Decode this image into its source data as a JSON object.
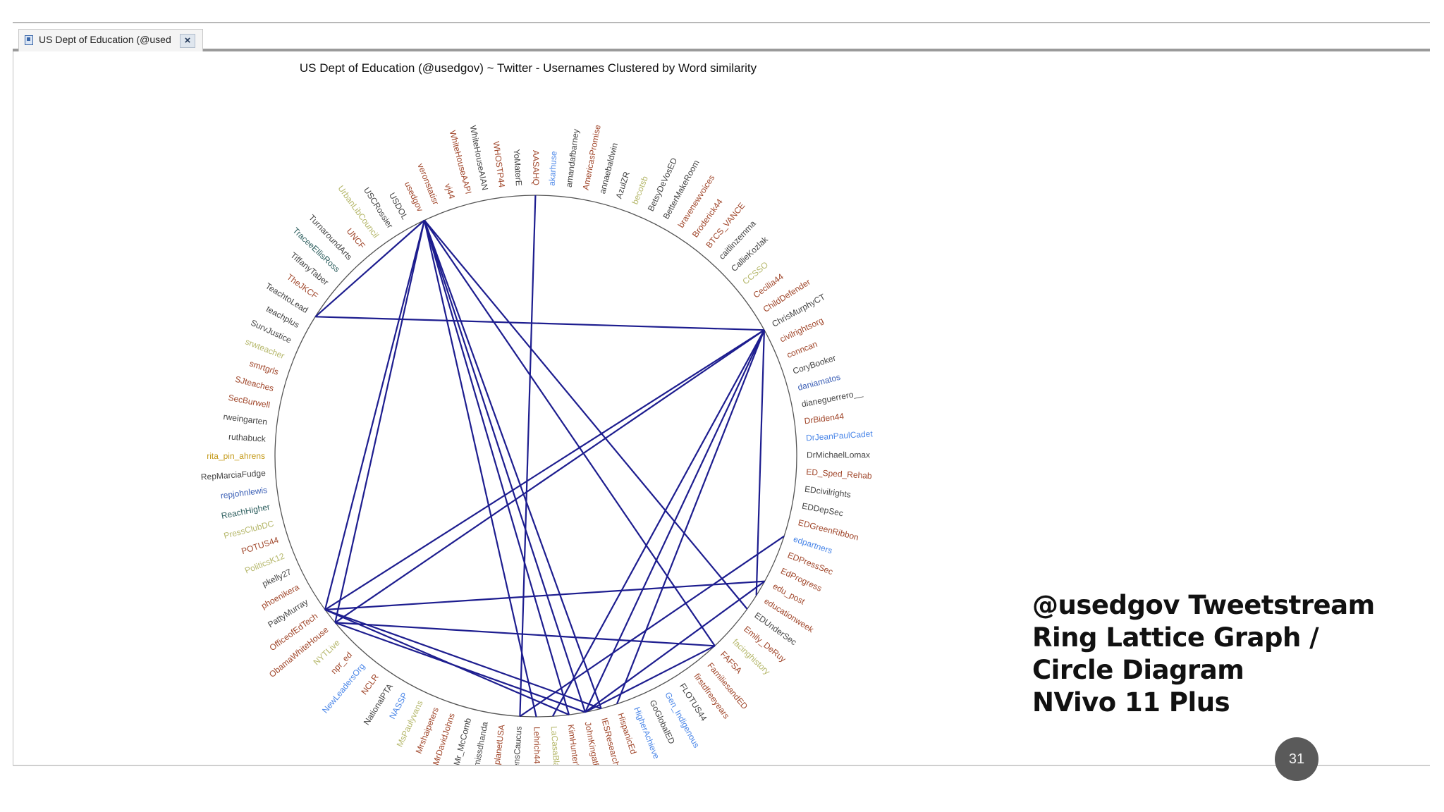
{
  "tab": {
    "title": "US Dept of Education (@used",
    "close_glyph": "×",
    "icon": "document-icon",
    "close_icon": "close-icon"
  },
  "diagram": {
    "title": "US Dept of Education (@usedgov) ~ Twitter - Usernames Clustered by Word similarity",
    "nodes": [
      {
        "label": "akarhuse",
        "color": "#4a86e8"
      },
      {
        "label": "amandafbarney",
        "color": "#444444"
      },
      {
        "label": "AmericasPromise",
        "color": "#a0462a"
      },
      {
        "label": "annaebaldwin",
        "color": "#444444"
      },
      {
        "label": "AzulZR",
        "color": "#444444"
      },
      {
        "label": "becotsb",
        "color": "#b5b76a"
      },
      {
        "label": "BetsyDeVosED",
        "color": "#444444"
      },
      {
        "label": "BetterMakeRoom",
        "color": "#444444"
      },
      {
        "label": "bravenewvoices",
        "color": "#a0462a"
      },
      {
        "label": "Broderick44",
        "color": "#a0462a"
      },
      {
        "label": "BTCS_VANCE",
        "color": "#a0462a"
      },
      {
        "label": "caitlinzemma",
        "color": "#444444"
      },
      {
        "label": "CallieKozlak",
        "color": "#444444"
      },
      {
        "label": "CCSSO",
        "color": "#b5b76a"
      },
      {
        "label": "Cecilia44",
        "color": "#a0462a"
      },
      {
        "label": "ChildDefender",
        "color": "#a0462a"
      },
      {
        "label": "ChrisMurphyCT",
        "color": "#444444"
      },
      {
        "label": "civilrightsorg",
        "color": "#a0462a"
      },
      {
        "label": "conncan",
        "color": "#a0462a"
      },
      {
        "label": "CoryBooker",
        "color": "#444444"
      },
      {
        "label": "daniamatos",
        "color": "#3b5fb6"
      },
      {
        "label": "dianeguerrero__",
        "color": "#444444"
      },
      {
        "label": "DrBiden44",
        "color": "#a0462a"
      },
      {
        "label": "DrJeanPaulCadet",
        "color": "#4a86e8"
      },
      {
        "label": "DrMichaelLomax",
        "color": "#444444"
      },
      {
        "label": "ED_Sped_Rehab",
        "color": "#a0462a"
      },
      {
        "label": "EDcivilrights",
        "color": "#444444"
      },
      {
        "label": "EDDepSec",
        "color": "#444444"
      },
      {
        "label": "EDGreenRibbon",
        "color": "#a0462a"
      },
      {
        "label": "edpartners",
        "color": "#4a86e8"
      },
      {
        "label": "EDPressSec",
        "color": "#a0462a"
      },
      {
        "label": "EdProgress",
        "color": "#a0462a"
      },
      {
        "label": "edu_post",
        "color": "#a0462a"
      },
      {
        "label": "educationweek",
        "color": "#a0462a"
      },
      {
        "label": "EDUnderSec",
        "color": "#444444"
      },
      {
        "label": "Emily_DeRuy",
        "color": "#a0462a"
      },
      {
        "label": "facinghistory",
        "color": "#b5b76a"
      },
      {
        "label": "FAFSA",
        "color": "#a0462a"
      },
      {
        "label": "FamiliesandED",
        "color": "#a0462a"
      },
      {
        "label": "firstdfreeyears",
        "color": "#a0462a"
      },
      {
        "label": "FLOTUS44",
        "color": "#444444"
      },
      {
        "label": "Gen_Indigenous",
        "color": "#4a86e8"
      },
      {
        "label": "GoGlobalED",
        "color": "#444444"
      },
      {
        "label": "HigherAchieve",
        "color": "#4a86e8"
      },
      {
        "label": "HispanicEd",
        "color": "#a0462a"
      },
      {
        "label": "IESResearch",
        "color": "#a0462a"
      },
      {
        "label": "JohnKingatED",
        "color": "#a0462a"
      },
      {
        "label": "KimHunterReed",
        "color": "#a0462a"
      },
      {
        "label": "LaCasaBlanca44",
        "color": "#b5b76a"
      },
      {
        "label": "Lehrich44",
        "color": "#a0462a"
      },
      {
        "label": "MAWomensCaucus",
        "color": "#444444"
      },
      {
        "label": "MedplanetUSA",
        "color": "#a0462a"
      },
      {
        "label": "missdhanda",
        "color": "#444444"
      },
      {
        "label": "Mr_McComb",
        "color": "#444444"
      },
      {
        "label": "MrDavidJohns",
        "color": "#a0462a"
      },
      {
        "label": "Mrshaipeters",
        "color": "#a0462a"
      },
      {
        "label": "MsPaulyvans",
        "color": "#b5b76a"
      },
      {
        "label": "NASSP",
        "color": "#4a86e8"
      },
      {
        "label": "NationalPTA",
        "color": "#444444"
      },
      {
        "label": "NCLR",
        "color": "#a0462a"
      },
      {
        "label": "NewLeadersOrg",
        "color": "#4a86e8"
      },
      {
        "label": "npr_ed",
        "color": "#a0462a"
      },
      {
        "label": "NYTLive",
        "color": "#b5b76a"
      },
      {
        "label": "ObamaWhiteHouse",
        "color": "#a0462a"
      },
      {
        "label": "OfficeofEdTech",
        "color": "#a0462a"
      },
      {
        "label": "PattyMurray",
        "color": "#444444"
      },
      {
        "label": "phoenikera",
        "color": "#a0462a"
      },
      {
        "label": "pkelly27",
        "color": "#444444"
      },
      {
        "label": "PoliticsK12",
        "color": "#b5b76a"
      },
      {
        "label": "POTUS44",
        "color": "#a0462a"
      },
      {
        "label": "PressClubDC",
        "color": "#b5b76a"
      },
      {
        "label": "ReachHigher",
        "color": "#2e5f5f"
      },
      {
        "label": "repjohnlewis",
        "color": "#3b5fb6"
      },
      {
        "label": "RepMarciaFudge",
        "color": "#444444"
      },
      {
        "label": "rita_pin_ahrens",
        "color": "#c49a1a"
      },
      {
        "label": "ruthabuck",
        "color": "#444444"
      },
      {
        "label": "rweingarten",
        "color": "#444444"
      },
      {
        "label": "SecBurwell",
        "color": "#a0462a"
      },
      {
        "label": "SJteaches",
        "color": "#a0462a"
      },
      {
        "label": "smrtgrls",
        "color": "#a0462a"
      },
      {
        "label": "srwteacher",
        "color": "#b5b76a"
      },
      {
        "label": "SurvJustice",
        "color": "#444444"
      },
      {
        "label": "teachplus",
        "color": "#444444"
      },
      {
        "label": "TeachtoLead",
        "color": "#444444"
      },
      {
        "label": "TheJKCF",
        "color": "#a0462a"
      },
      {
        "label": "TiffanyTaber",
        "color": "#444444"
      },
      {
        "label": "TraceeEllisRoss",
        "color": "#2e5f5f"
      },
      {
        "label": "TurnaroundArts",
        "color": "#444444"
      },
      {
        "label": "UNCF",
        "color": "#a0462a"
      },
      {
        "label": "UrbanLibCouncil",
        "color": "#b5b76a"
      },
      {
        "label": "USCRossier",
        "color": "#444444"
      },
      {
        "label": "USDOL",
        "color": "#444444"
      },
      {
        "label": "usedgov",
        "color": "#a0462a"
      },
      {
        "label": "veronstatisr",
        "color": "#a0462a"
      },
      {
        "label": "vj44",
        "color": "#a0462a"
      },
      {
        "label": "WhiteHouseAAPI",
        "color": "#a0462a"
      },
      {
        "label": "WhiteHouseAIAN",
        "color": "#444444"
      },
      {
        "label": "WHOSTP44",
        "color": "#a0462a"
      },
      {
        "label": "YoMaterE",
        "color": "#444444"
      },
      {
        "label": "AASAHQ",
        "color": "#a0462a"
      }
    ],
    "edges": [
      [
        "usedgov",
        "TeachtoLead"
      ],
      [
        "usedgov",
        "OfficeofEdTech"
      ],
      [
        "usedgov",
        "ObamaWhiteHouse"
      ],
      [
        "usedgov",
        "Lehrich44"
      ],
      [
        "usedgov",
        "KimHunterReed"
      ],
      [
        "usedgov",
        "JohnKingatED"
      ],
      [
        "usedgov",
        "IESResearch"
      ],
      [
        "usedgov",
        "FAFSA"
      ],
      [
        "usedgov",
        "EDUnderSec"
      ],
      [
        "TeachtoLead",
        "ChrisMurphyCT"
      ],
      [
        "ChrisMurphyCT",
        "OfficeofEdTech"
      ],
      [
        "ChrisMurphyCT",
        "ObamaWhiteHouse"
      ],
      [
        "ChrisMurphyCT",
        "LaCasaBlanca44"
      ],
      [
        "ChrisMurphyCT",
        "JohnKingatED"
      ],
      [
        "ChrisMurphyCT",
        "HispanicEd"
      ],
      [
        "ChrisMurphyCT",
        "educationweek"
      ],
      [
        "OfficeofEdTech",
        "edu_post"
      ],
      [
        "OfficeofEdTech",
        "IESResearch"
      ],
      [
        "OfficeofEdTech",
        "KimHunterReed"
      ],
      [
        "ObamaWhiteHouse",
        "FAFSA"
      ],
      [
        "ObamaWhiteHouse",
        "JohnKingatED"
      ],
      [
        "AASAHQ",
        "MAWomensCaucus"
      ],
      [
        "MAWomensCaucus",
        "edpartners"
      ],
      [
        "JohnKingatED",
        "FAFSA"
      ],
      [
        "JohnKingatED",
        "edu_post"
      ]
    ]
  },
  "caption": {
    "line1": "@usedgov Tweetstream",
    "line2": "Ring Lattice Graph /",
    "line3": "Circle Diagram",
    "line4": "NVivo 11 Plus"
  },
  "page_number": "31",
  "colors": {
    "edge": "#1d1d8f",
    "ring": "#555555"
  }
}
